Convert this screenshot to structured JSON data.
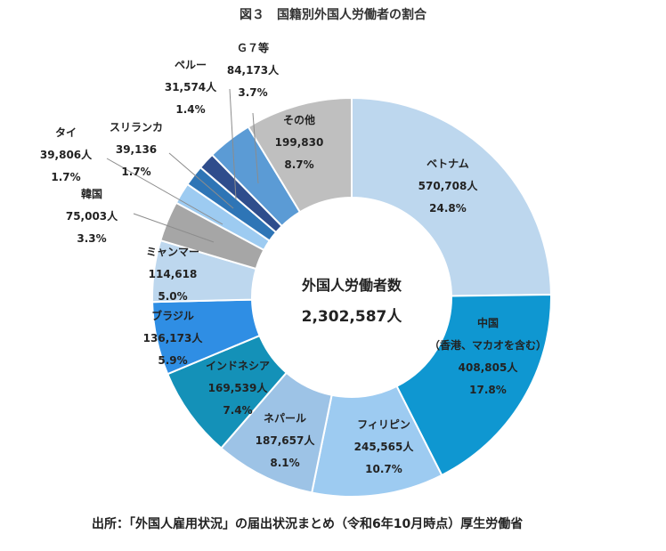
{
  "chart_data": {
    "type": "pie",
    "title": "図３　国籍別外国人労働者の割合",
    "center_label": "外国人労働者数",
    "center_value": "2,302,587人",
    "source_note": "出所：「外国人雇用状況」の届出状況まとめ（令和6年10月時点）厚生労働省",
    "series": [
      {
        "label": "ベトナム",
        "count": 570708,
        "count_label": "570,708人",
        "percent": 24.8,
        "percent_label": "24.8%",
        "color": "#bdd7ee"
      },
      {
        "label": "中国\n（香港、マカオを含む）",
        "count": 408805,
        "count_label": "408,805人",
        "percent": 17.8,
        "percent_label": "17.8%",
        "color": "#0f97d1"
      },
      {
        "label": "フィリピン",
        "count": 245565,
        "count_label": "245,565人",
        "percent": 10.7,
        "percent_label": "10.7%",
        "color": "#9dcbf1"
      },
      {
        "label": "ネパール",
        "count": 187657,
        "count_label": "187,657人",
        "percent": 8.1,
        "percent_label": "8.1%",
        "color": "#9dc3e6"
      },
      {
        "label": "インドネシア",
        "count": 169539,
        "count_label": "169,539人",
        "percent": 7.4,
        "percent_label": "7.4%",
        "color": "#1491b8"
      },
      {
        "label": "ブラジル",
        "count": 136173,
        "count_label": "136,173人",
        "percent": 5.9,
        "percent_label": "5.9%",
        "color": "#2f8ee4"
      },
      {
        "label": "ミャンマー",
        "count": 114618,
        "count_label": "114,618",
        "percent": 5.0,
        "percent_label": "5.0%",
        "color": "#bdd7ee"
      },
      {
        "label": "韓国",
        "count": 75003,
        "count_label": "75,003人",
        "percent": 3.3,
        "percent_label": "3.3%",
        "color": "#a6a6a6"
      },
      {
        "label": "タイ",
        "count": 39806,
        "count_label": "39,806人",
        "percent": 1.7,
        "percent_label": "1.7%",
        "color": "#9dcbf1"
      },
      {
        "label": "スリランカ",
        "count": 39136,
        "count_label": "39,136",
        "percent": 1.7,
        "percent_label": "1.7%",
        "color": "#2e75b6"
      },
      {
        "label": "ペルー",
        "count": 31574,
        "count_label": "31,574人",
        "percent": 1.4,
        "percent_label": "1.4%",
        "color": "#2f4d8c"
      },
      {
        "label": "Ｇ７等",
        "count": 84173,
        "count_label": "84,173人",
        "percent": 3.7,
        "percent_label": "3.7%",
        "color": "#5b9bd5"
      },
      {
        "label": "その他",
        "count": 199830,
        "count_label": "199,830",
        "percent": 8.7,
        "percent_label": "8.7%",
        "color": "#bfbfbf"
      }
    ]
  }
}
